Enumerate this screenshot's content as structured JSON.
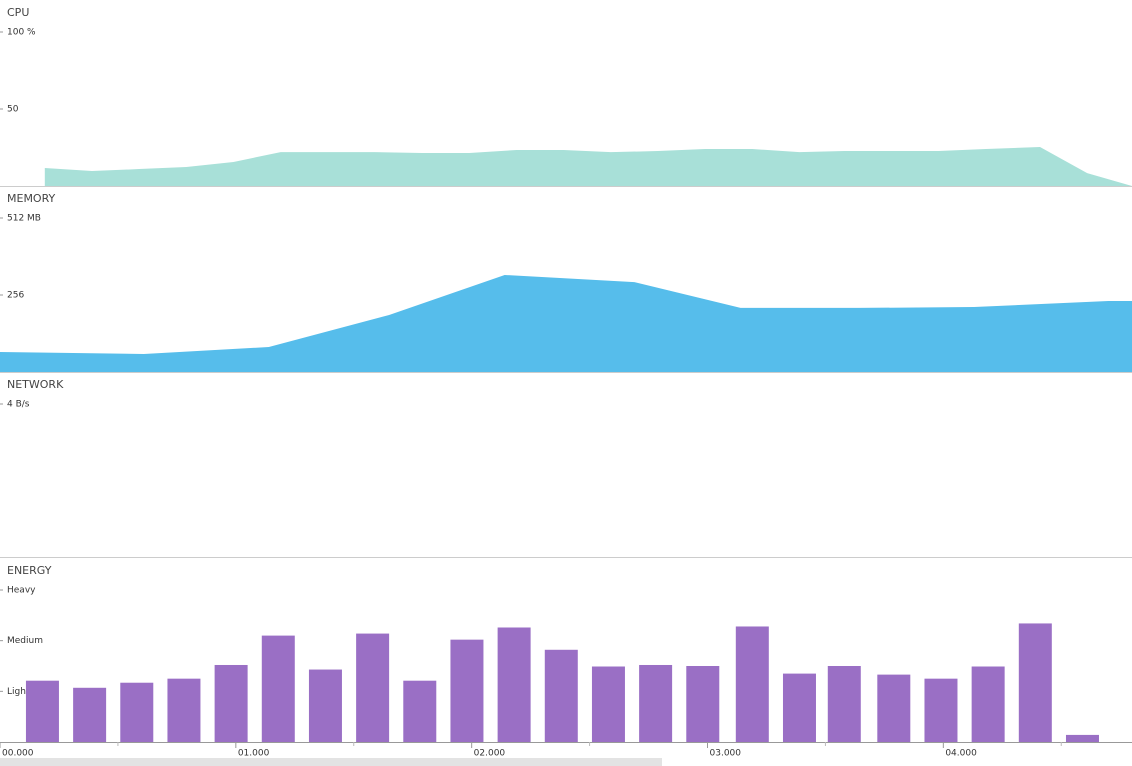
{
  "chart_data": [
    {
      "type": "area",
      "title": "CPU",
      "color": "#a8e0d8",
      "ylim": [
        0,
        100
      ],
      "yticks": [
        {
          "value": 100,
          "label": "100 %"
        },
        50
      ],
      "x": [
        0.19,
        0.39,
        0.59,
        0.79,
        0.99,
        1.19,
        1.39,
        1.59,
        1.79,
        1.99,
        2.19,
        2.39,
        2.59,
        2.79,
        2.99,
        3.19,
        3.39,
        3.58,
        3.78,
        3.98,
        4.18,
        4.41,
        4.61,
        4.8
      ],
      "values": [
        11.7,
        9.7,
        11,
        12.3,
        15.6,
        22,
        22,
        22,
        21.4,
        21.4,
        23.4,
        23.4,
        22,
        22.7,
        24,
        24,
        22,
        22.7,
        22.7,
        22.7,
        24,
        25.3,
        8.4,
        0
      ]
    },
    {
      "type": "area",
      "title": "MEMORY",
      "color": "#56bdeb",
      "ylim": [
        0,
        512
      ],
      "yticks": [
        {
          "value": 512,
          "label": "512 MB"
        },
        256
      ],
      "x": [
        0,
        0.61,
        1.14,
        1.65,
        2.14,
        2.69,
        3.14,
        3.64,
        4.13,
        4.7,
        4.8
      ],
      "values": [
        66.5,
        59.8,
        83,
        189.5,
        322.5,
        299,
        213,
        213,
        216,
        236,
        236
      ]
    },
    {
      "type": "area",
      "title": "NETWORK",
      "color": "#56bdeb",
      "ylim": [
        0,
        4
      ],
      "yticks": [
        {
          "value": 4,
          "label": "4 B/s"
        }
      ],
      "x": [],
      "values": []
    },
    {
      "type": "bar",
      "title": "ENERGY",
      "color": "#9a6fc5",
      "ylim": [
        0,
        3
      ],
      "yticks": [
        {
          "value": 3,
          "label": "Heavy"
        },
        {
          "value": 2,
          "label": "Medium"
        },
        {
          "value": 1,
          "label": "Light"
        }
      ],
      "x": [
        0.18,
        0.38,
        0.58,
        0.78,
        0.98,
        1.18,
        1.38,
        1.58,
        1.78,
        1.98,
        2.18,
        2.38,
        2.58,
        2.78,
        2.98,
        3.19,
        3.39,
        3.58,
        3.79,
        3.99,
        4.19,
        4.39,
        4.59
      ],
      "values": [
        1.21,
        1.07,
        1.17,
        1.25,
        1.52,
        2.1,
        1.43,
        2.14,
        1.21,
        2.02,
        2.26,
        1.82,
        1.49,
        1.52,
        1.5,
        2.28,
        1.35,
        1.5,
        1.33,
        1.25,
        1.49,
        2.34,
        0.14
      ]
    }
  ],
  "x_axis": {
    "xlim": [
      0,
      4.8
    ],
    "xticks": [
      {
        "value": 0,
        "label": "00.000"
      },
      {
        "value": 1,
        "label": "01.000"
      },
      {
        "value": 2,
        "label": "02.000"
      },
      {
        "value": 3,
        "label": "03.000"
      },
      {
        "value": 4,
        "label": "04.000"
      }
    ],
    "minor_xticks": [
      0.5,
      1.5,
      2.5,
      3.5,
      4.5
    ]
  }
}
